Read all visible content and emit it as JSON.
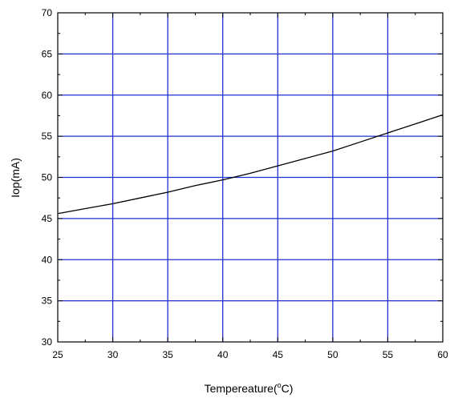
{
  "chart_data": {
    "type": "line",
    "xlabel_main": "Tempereature(",
    "xlabel_unit_sup": "o",
    "xlabel_unit_tail": "C)",
    "ylabel": "Iop(mA)",
    "xlim": [
      25,
      60
    ],
    "ylim": [
      30,
      70
    ],
    "x_ticks": [
      25,
      30,
      35,
      40,
      45,
      50,
      55,
      60
    ],
    "y_ticks": [
      30,
      35,
      40,
      45,
      50,
      55,
      60,
      65,
      70
    ],
    "x_tick_labels": [
      "25",
      "30",
      "35",
      "40",
      "45",
      "50",
      "55",
      "60"
    ],
    "y_tick_labels": [
      "30",
      "35",
      "40",
      "45",
      "50",
      "55",
      "60",
      "65",
      "70"
    ],
    "grid": true,
    "legend": "none",
    "series": [
      {
        "x": [
          25,
          27.5,
          30,
          32.5,
          35,
          37.5,
          40,
          42.5,
          45,
          47.5,
          50,
          52.5,
          55,
          57.5,
          60
        ],
        "values": [
          45.6,
          46.2,
          46.8,
          47.5,
          48.2,
          49.0,
          49.7,
          50.5,
          51.4,
          52.3,
          53.2,
          54.3,
          55.4,
          56.5,
          57.6
        ]
      }
    ],
    "colors": {
      "grid": "#1f2fd0",
      "line": "#000000",
      "axis": "#000000"
    }
  }
}
